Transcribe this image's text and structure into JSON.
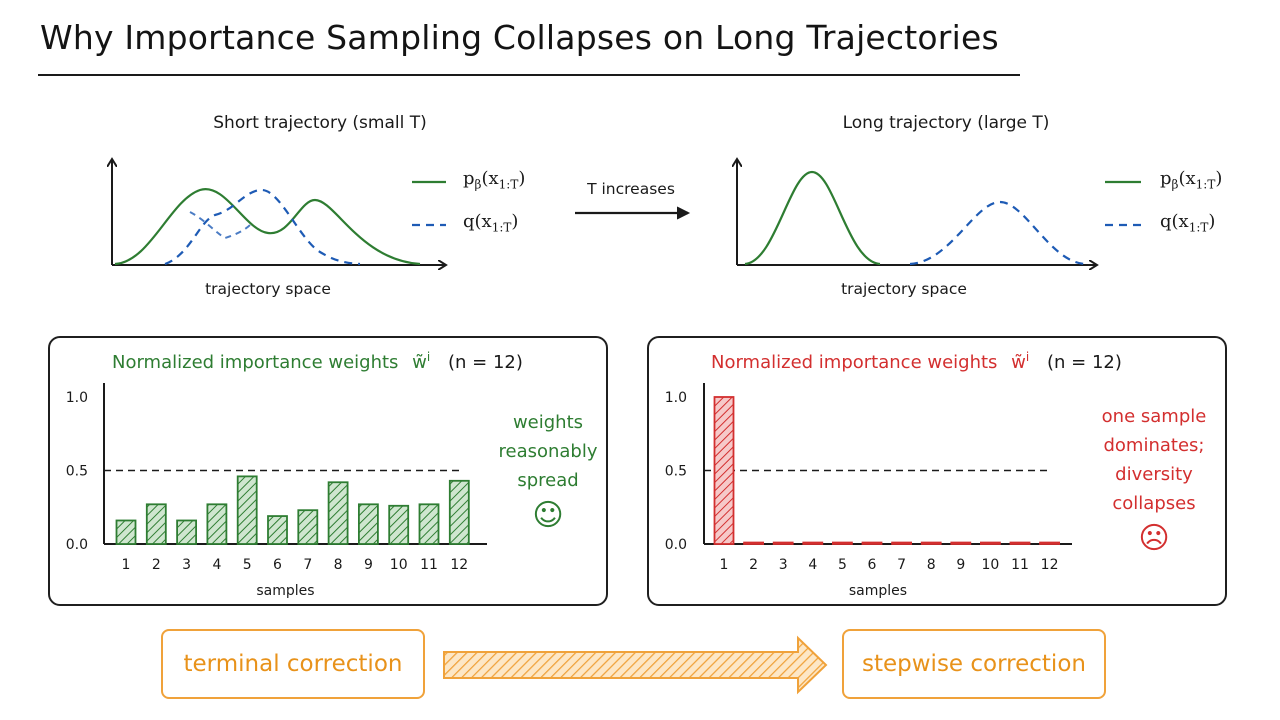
{
  "title": "Why Importance Sampling Collapses on Long Trajectories",
  "top": {
    "left_panel": {
      "title": "Short trajectory (small T)",
      "xlabel": "trajectory space"
    },
    "right_panel": {
      "title": "Long trajectory (large T)",
      "xlabel": "trajectory space"
    },
    "legend": {
      "p_main": "p",
      "p_sub_beta": "β",
      "p_arg_open": "(x",
      "p_arg_sub": "1:T",
      "p_arg_close": ")",
      "q_main": "q(x",
      "q_arg_sub": "1:T",
      "q_arg_close": ")"
    },
    "arrow_label": "T increases",
    "colors": {
      "p": "#2e7d32",
      "q": "#1e5bb5"
    }
  },
  "chart_data": [
    {
      "type": "bar",
      "title": "Normalized importance weights w̃ⁱ (n = 12)",
      "title_text": "Normalized importance weights",
      "title_symbol": "w̃",
      "title_superscript": "i",
      "title_n": "(n = 12)",
      "xlabel": "samples",
      "categories": [
        "1",
        "2",
        "3",
        "4",
        "5",
        "6",
        "7",
        "8",
        "9",
        "10",
        "11",
        "12"
      ],
      "values": [
        0.16,
        0.27,
        0.16,
        0.27,
        0.46,
        0.19,
        0.23,
        0.42,
        0.27,
        0.26,
        0.27,
        0.43
      ],
      "yticks": [
        "0.0",
        "0.5",
        "1.0"
      ],
      "ylim": [
        0,
        1.0
      ],
      "reference_line": 0.5,
      "color": "#2e7d32",
      "note": [
        "weights",
        "reasonably",
        "spread"
      ],
      "face": "☺"
    },
    {
      "type": "bar",
      "title": "Normalized importance weights w̃ⁱ (n = 12)",
      "title_text": "Normalized importance weights",
      "title_symbol": "w̃",
      "title_superscript": "i",
      "title_n": "(n = 12)",
      "xlabel": "samples",
      "categories": [
        "1",
        "2",
        "3",
        "4",
        "5",
        "6",
        "7",
        "8",
        "9",
        "10",
        "11",
        "12"
      ],
      "values": [
        1.0,
        0.01,
        0.01,
        0.01,
        0.01,
        0.01,
        0.01,
        0.01,
        0.01,
        0.01,
        0.01,
        0.01
      ],
      "yticks": [
        "0.0",
        "0.5",
        "1.0"
      ],
      "ylim": [
        0,
        1.0
      ],
      "reference_line": 0.5,
      "color": "#d32f2f",
      "note": [
        "one sample",
        "dominates;",
        "diversity",
        "collapses"
      ],
      "face": "☹"
    }
  ],
  "bottom": {
    "left_label": "terminal correction",
    "right_label": "stepwise correction",
    "color": "#f0a23a"
  }
}
